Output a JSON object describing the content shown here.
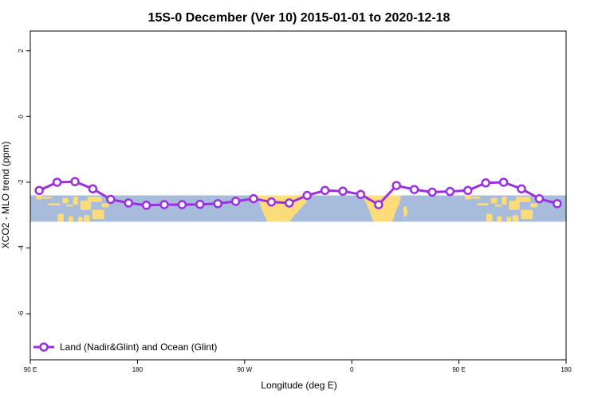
{
  "chart_data": {
    "type": "line",
    "title": "15S-0 December (Ver 10)   2015-01-01 to 2020-12-18",
    "xlabel": "Longitude (deg E)",
    "ylabel": "XCO2 - MLO trend (ppm)",
    "xlim": [
      90,
      540
    ],
    "ylim": [
      -7.4,
      2.6
    ],
    "x_ticks": [
      {
        "value": 90,
        "label": "90 E"
      },
      {
        "value": 180,
        "label": "180"
      },
      {
        "value": 270,
        "label": "90 W"
      },
      {
        "value": 360,
        "label": "0"
      },
      {
        "value": 450,
        "label": "90 E"
      },
      {
        "value": 540,
        "label": "180"
      }
    ],
    "y_ticks": [
      {
        "value": 2,
        "label": "2"
      },
      {
        "value": 0,
        "label": "0"
      },
      {
        "value": -2,
        "label": "-2"
      },
      {
        "value": -4,
        "label": "-4"
      },
      {
        "value": -6,
        "label": "-6"
      }
    ],
    "grid": false,
    "legend_position": "bottom-left",
    "background_map": {
      "lat_range": [
        -15,
        0
      ],
      "y_range": [
        -2.4,
        -3.2
      ],
      "ocean_color": "#a7bcdb",
      "land_color": "#fcdb7a"
    },
    "series": [
      {
        "name": "Land (Nadir&Glint) and Ocean (Glint)",
        "color": "#9b30e0",
        "x": [
          97.5,
          112.5,
          127.5,
          142.5,
          157.5,
          172.5,
          187.5,
          202.5,
          217.5,
          232.5,
          247.5,
          262.5,
          277.5,
          292.5,
          307.5,
          322.5,
          337.5,
          352.5,
          367.5,
          382.5,
          397.5,
          412.5,
          427.5,
          442.5,
          457.5,
          472.5,
          487.5,
          502.5,
          517.5,
          532.5
        ],
        "y": [
          -2.25,
          -2.0,
          -1.98,
          -2.2,
          -2.52,
          -2.63,
          -2.7,
          -2.68,
          -2.68,
          -2.67,
          -2.65,
          -2.58,
          -2.5,
          -2.6,
          -2.63,
          -2.4,
          -2.25,
          -2.27,
          -2.37,
          -2.68,
          -2.1,
          -2.22,
          -2.3,
          -2.28,
          -2.25,
          -2.02,
          -2.0,
          -2.2,
          -2.5,
          -2.65
        ]
      }
    ]
  }
}
